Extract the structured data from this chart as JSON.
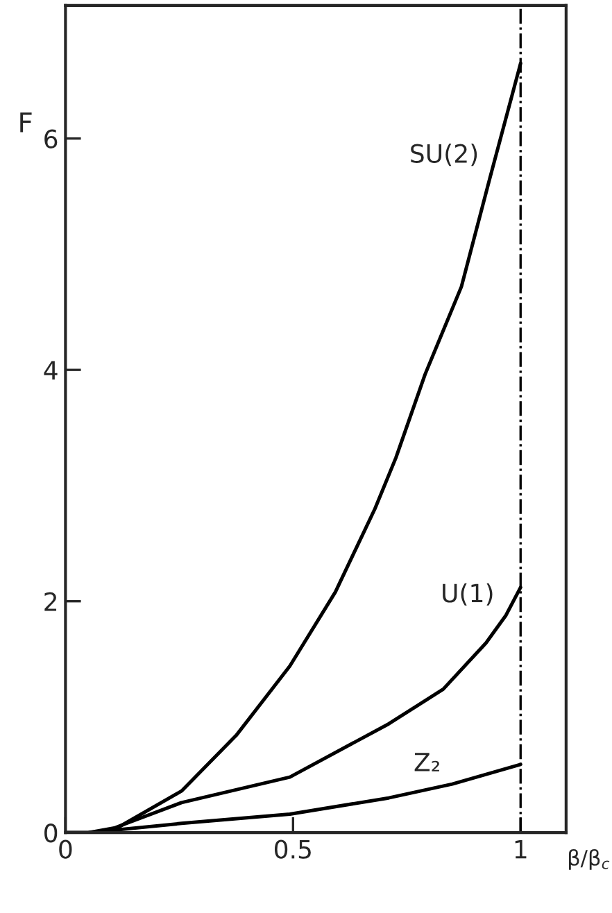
{
  "chart_data": {
    "type": "line",
    "xlabel": "β/β$_{c}$",
    "ylabel": "F",
    "xlim": [
      0,
      1.1
    ],
    "ylim": [
      0,
      7.15
    ],
    "xticks": [
      0,
      0.5,
      1
    ],
    "yticks": [
      0,
      2,
      4,
      6
    ],
    "grid": false,
    "legend": false,
    "marker": "none",
    "line_style": "solid",
    "ref_lines": [
      {
        "axis": "x",
        "value": 1,
        "color": "#000000",
        "line_style": "dashdot"
      }
    ],
    "series": [
      {
        "name": "SU(2)",
        "color": "#000000",
        "x": [
          0,
          0.05,
          0.1,
          0.255,
          0.375,
          0.493,
          0.593,
          0.68,
          0.726,
          0.79,
          0.87,
          0.934,
          1
        ],
        "values": [
          0,
          0,
          0.01,
          0.36,
          0.84,
          1.44,
          2.08,
          2.8,
          3.24,
          3.96,
          4.72,
          5.68,
          6.65
        ]
      },
      {
        "name": "U(1)",
        "color": "#000000",
        "x": [
          0,
          0.05,
          0.107,
          0.255,
          0.493,
          0.71,
          0.83,
          0.924,
          0.968,
          1
        ],
        "values": [
          0,
          0,
          0.04,
          0.26,
          0.48,
          0.94,
          1.24,
          1.64,
          1.88,
          2.12
        ]
      },
      {
        "name": "Z₂",
        "color": "#000000",
        "x": [
          0,
          0.05,
          0.255,
          0.493,
          0.71,
          0.85,
          1
        ],
        "values": [
          0,
          0,
          0.08,
          0.16,
          0.3,
          0.42,
          0.59
        ]
      }
    ]
  }
}
